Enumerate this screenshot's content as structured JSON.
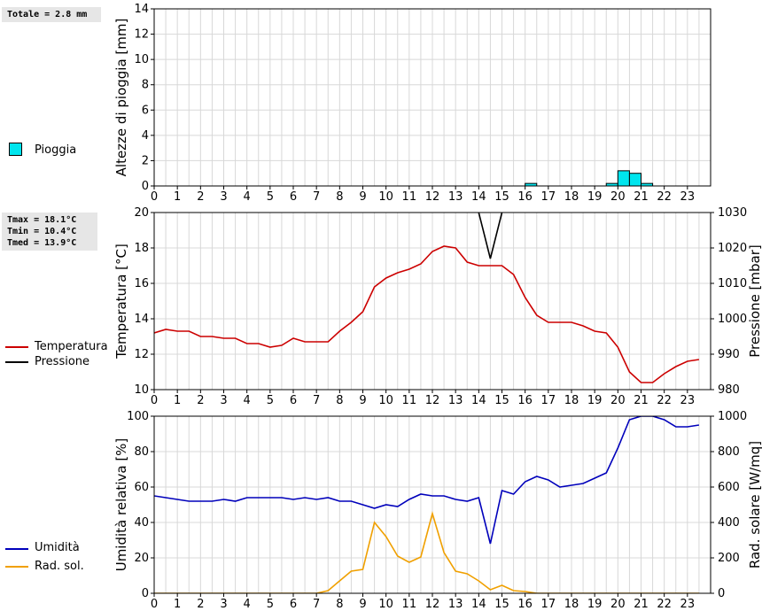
{
  "stats": {
    "rain_total": "Totale = 2.8 mm",
    "tmax": "Tmax = 18.1°C",
    "tmin": "Tmin = 10.4°C",
    "tmed": "Tmed = 13.9°C"
  },
  "legend": {
    "rain": "Pioggia",
    "temp": "Temperatura",
    "press": "Pressione",
    "hum": "Umidità",
    "rad": "Rad. sol."
  },
  "colors": {
    "rain": "#00e5ee",
    "temp": "#cc0000",
    "press": "#000000",
    "hum": "#0000bb",
    "rad": "#f0a000",
    "grid": "#d8d8d8"
  },
  "chart_data": [
    {
      "type": "bar",
      "title": "",
      "xlabel": "",
      "ylabel": "Altezze di pioggia [mm]",
      "xlim": [
        0,
        24
      ],
      "ylim": [
        0,
        14
      ],
      "yticks": [
        "0",
        "2",
        "4",
        "6",
        "8",
        "10",
        "12",
        "14"
      ],
      "xticks": [
        "0",
        "1",
        "2",
        "3",
        "4",
        "5",
        "6",
        "7",
        "8",
        "9",
        "10",
        "11",
        "12",
        "13",
        "14",
        "15",
        "16",
        "17",
        "18",
        "19",
        "20",
        "21",
        "22",
        "23"
      ],
      "series": [
        {
          "name": "Pioggia",
          "bars": [
            {
              "start": 16.0,
              "end": 16.5,
              "value": 0.2
            },
            {
              "start": 19.5,
              "end": 20.0,
              "value": 0.2
            },
            {
              "start": 20.0,
              "end": 20.5,
              "value": 1.2
            },
            {
              "start": 20.5,
              "end": 21.0,
              "value": 1.0
            },
            {
              "start": 21.0,
              "end": 21.5,
              "value": 0.2
            }
          ]
        }
      ]
    },
    {
      "type": "line",
      "title": "",
      "xlabel": "",
      "ylabel": "Temperatura [°C]",
      "y2label": "Pressione [mbar]",
      "xlim": [
        0,
        24
      ],
      "ylim": [
        10,
        20
      ],
      "y2lim": [
        980,
        1030
      ],
      "yticks": [
        "10",
        "12",
        "14",
        "16",
        "18",
        "20"
      ],
      "y2ticks": [
        "980",
        "990",
        "1000",
        "1010",
        "1020",
        "1030"
      ],
      "xticks": [
        "0",
        "1",
        "2",
        "3",
        "4",
        "5",
        "6",
        "7",
        "8",
        "9",
        "10",
        "11",
        "12",
        "13",
        "14",
        "15",
        "16",
        "17",
        "18",
        "19",
        "20",
        "21",
        "22",
        "23"
      ],
      "series": [
        {
          "name": "Temperatura",
          "axis": "left",
          "x": [
            0,
            0.5,
            1,
            1.5,
            2,
            2.5,
            3,
            3.5,
            4,
            4.5,
            5,
            5.5,
            6,
            6.5,
            7,
            7.5,
            8,
            8.5,
            9,
            9.5,
            10,
            10.5,
            11,
            11.5,
            12,
            12.5,
            13,
            13.5,
            14,
            14.5,
            15,
            15.5,
            16,
            16.5,
            17,
            17.5,
            18,
            18.5,
            19,
            19.5,
            20,
            20.5,
            21,
            21.5,
            22,
            22.5,
            23,
            23.5
          ],
          "y": [
            13.2,
            13.4,
            13.3,
            13.3,
            13.0,
            13.0,
            12.9,
            12.9,
            12.6,
            12.6,
            12.4,
            12.5,
            12.9,
            12.7,
            12.7,
            12.7,
            13.3,
            13.8,
            14.4,
            15.8,
            16.3,
            16.6,
            16.8,
            17.1,
            17.8,
            18.1,
            18.0,
            17.2,
            17.0,
            17.0,
            17.0,
            16.5,
            15.2,
            14.2,
            13.8,
            13.8,
            13.8,
            13.6,
            13.3,
            13.2,
            12.4,
            11.0,
            10.4,
            10.4,
            10.9,
            11.3,
            11.6,
            11.7
          ]
        },
        {
          "name": "Pressione",
          "axis": "right",
          "x": [
            14.0,
            14.5,
            15.0
          ],
          "y": [
            1030,
            1017,
            1030
          ]
        }
      ]
    },
    {
      "type": "line",
      "title": "",
      "xlabel": "",
      "ylabel": "Umidità relativa [%]",
      "y2label": "Rad. solare [W/mq]",
      "xlim": [
        0,
        24
      ],
      "ylim": [
        0,
        100
      ],
      "y2lim": [
        0,
        1000
      ],
      "yticks": [
        "0",
        "20",
        "40",
        "60",
        "80",
        "100"
      ],
      "y2ticks": [
        "0",
        "200",
        "400",
        "600",
        "800",
        "1000"
      ],
      "xticks": [
        "0",
        "1",
        "2",
        "3",
        "4",
        "5",
        "6",
        "7",
        "8",
        "9",
        "10",
        "11",
        "12",
        "13",
        "14",
        "15",
        "16",
        "17",
        "18",
        "19",
        "20",
        "21",
        "22",
        "23"
      ],
      "series": [
        {
          "name": "Umidità",
          "axis": "left",
          "x": [
            0,
            0.5,
            1,
            1.5,
            2,
            2.5,
            3,
            3.5,
            4,
            4.5,
            5,
            5.5,
            6,
            6.5,
            7,
            7.5,
            8,
            8.5,
            9,
            9.5,
            10,
            10.5,
            11,
            11.5,
            12,
            12.5,
            13,
            13.5,
            14,
            14.5,
            15,
            15.5,
            16,
            16.5,
            17,
            17.5,
            18,
            18.5,
            19,
            19.5,
            20,
            20.5,
            21,
            21.5,
            22,
            22.5,
            23,
            23.5
          ],
          "y": [
            55,
            54,
            53,
            52,
            52,
            52,
            53,
            52,
            54,
            54,
            54,
            54,
            53,
            54,
            53,
            54,
            52,
            52,
            50,
            48,
            50,
            49,
            53,
            56,
            55,
            55,
            53,
            52,
            54,
            28,
            58,
            56,
            63,
            66,
            64,
            60,
            61,
            62,
            65,
            68,
            82,
            98,
            100,
            100,
            98,
            94,
            94,
            95
          ]
        },
        {
          "name": "Rad. sol.",
          "axis": "right",
          "x": [
            0,
            0.5,
            1,
            1.5,
            2,
            2.5,
            3,
            3.5,
            4,
            4.5,
            5,
            5.5,
            6,
            6.5,
            7,
            7.5,
            8,
            8.5,
            9,
            9.5,
            10,
            10.5,
            11,
            11.5,
            12,
            12.5,
            13,
            13.5,
            14,
            14.5,
            15,
            15.5,
            16,
            16.5,
            17,
            17.5,
            18,
            18.5,
            19,
            19.5,
            20,
            20.5,
            21,
            21.5,
            22,
            22.5,
            23,
            23.5
          ],
          "y": [
            0,
            0,
            0,
            0,
            0,
            0,
            0,
            0,
            0,
            0,
            0,
            0,
            0,
            0,
            0,
            15,
            70,
            125,
            135,
            400,
            320,
            210,
            175,
            205,
            450,
            230,
            125,
            110,
            70,
            20,
            45,
            15,
            10,
            0,
            0,
            0,
            0,
            0,
            0,
            0,
            0,
            0,
            0,
            0,
            0,
            0,
            0,
            0
          ]
        }
      ]
    }
  ]
}
